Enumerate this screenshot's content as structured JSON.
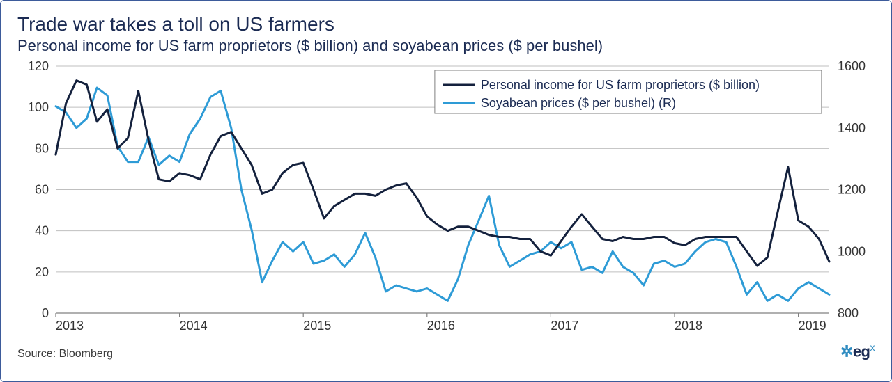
{
  "title": "Trade war takes a toll on US farmers",
  "subtitle": "Personal income for US farm proprietors ($ billion) and soyabean prices ($ per bushel)",
  "source_label": "Source: Bloomberg",
  "logo_text": "eg",
  "logo_super": "x",
  "chart": {
    "type": "line-dual-axis",
    "background_color": "#ffffff",
    "grid_color": "#bfbfbf",
    "axis_color": "#808080",
    "tick_label_color": "#333333",
    "tick_fontsize": 18,
    "title_fontsize": 28,
    "subtitle_fontsize": 22,
    "line_width": 3,
    "x": {
      "domain_start": 2013.0,
      "domain_end": 2019.25,
      "tick_values": [
        2013,
        2014,
        2015,
        2016,
        2017,
        2018,
        2019
      ],
      "tick_labels": [
        "2013",
        "2014",
        "2015",
        "2016",
        "2017",
        "2018",
        "2019"
      ]
    },
    "y_left": {
      "domain_min": 0,
      "domain_max": 120,
      "tick_step": 20,
      "tick_values": [
        0,
        20,
        40,
        60,
        80,
        100,
        120
      ],
      "label": ""
    },
    "y_right": {
      "domain_min": 800,
      "domain_max": 1600,
      "tick_step": 200,
      "tick_values": [
        800,
        1000,
        1200,
        1400,
        1600
      ],
      "label": ""
    },
    "legend": {
      "position": "top-right-inside",
      "border_color": "#808080",
      "background_color": "#ffffff",
      "fontsize": 18,
      "text_color": "#1b2b53",
      "items": [
        {
          "key": "income",
          "label": "Personal income for US farm proprietors ($ billion)"
        },
        {
          "key": "soyabean",
          "label": "Soyabean prices ($ per bushel) (R)"
        }
      ]
    },
    "series": {
      "income": {
        "color": "#14213d",
        "axis": "left",
        "data": [
          [
            2013.0,
            77
          ],
          [
            2013.083,
            102
          ],
          [
            2013.167,
            113
          ],
          [
            2013.25,
            111
          ],
          [
            2013.333,
            93
          ],
          [
            2013.417,
            99
          ],
          [
            2013.5,
            80
          ],
          [
            2013.583,
            85
          ],
          [
            2013.667,
            108
          ],
          [
            2013.75,
            84
          ],
          [
            2013.833,
            65
          ],
          [
            2013.917,
            64
          ],
          [
            2014.0,
            68
          ],
          [
            2014.083,
            67
          ],
          [
            2014.167,
            65
          ],
          [
            2014.25,
            77
          ],
          [
            2014.333,
            86
          ],
          [
            2014.417,
            88
          ],
          [
            2014.5,
            80
          ],
          [
            2014.583,
            72
          ],
          [
            2014.667,
            58
          ],
          [
            2014.75,
            60
          ],
          [
            2014.833,
            68
          ],
          [
            2014.917,
            72
          ],
          [
            2015.0,
            73
          ],
          [
            2015.083,
            60
          ],
          [
            2015.167,
            46
          ],
          [
            2015.25,
            52
          ],
          [
            2015.333,
            55
          ],
          [
            2015.417,
            58
          ],
          [
            2015.5,
            58
          ],
          [
            2015.583,
            57
          ],
          [
            2015.667,
            60
          ],
          [
            2015.75,
            62
          ],
          [
            2015.833,
            63
          ],
          [
            2015.917,
            56
          ],
          [
            2016.0,
            47
          ],
          [
            2016.083,
            43
          ],
          [
            2016.167,
            40
          ],
          [
            2016.25,
            42
          ],
          [
            2016.333,
            42
          ],
          [
            2016.417,
            40
          ],
          [
            2016.5,
            38
          ],
          [
            2016.583,
            37
          ],
          [
            2016.667,
            37
          ],
          [
            2016.75,
            36
          ],
          [
            2016.833,
            36
          ],
          [
            2016.917,
            30
          ],
          [
            2017.0,
            28
          ],
          [
            2017.083,
            35
          ],
          [
            2017.167,
            42
          ],
          [
            2017.25,
            48
          ],
          [
            2017.333,
            42
          ],
          [
            2017.417,
            36
          ],
          [
            2017.5,
            35
          ],
          [
            2017.583,
            37
          ],
          [
            2017.667,
            36
          ],
          [
            2017.75,
            36
          ],
          [
            2017.833,
            37
          ],
          [
            2017.917,
            37
          ],
          [
            2018.0,
            34
          ],
          [
            2018.083,
            33
          ],
          [
            2018.167,
            36
          ],
          [
            2018.25,
            37
          ],
          [
            2018.333,
            37
          ],
          [
            2018.417,
            37
          ],
          [
            2018.5,
            37
          ],
          [
            2018.583,
            30
          ],
          [
            2018.667,
            23
          ],
          [
            2018.75,
            27
          ],
          [
            2018.833,
            49
          ],
          [
            2018.917,
            71
          ],
          [
            2019.0,
            45
          ],
          [
            2019.083,
            42
          ],
          [
            2019.167,
            36
          ],
          [
            2019.25,
            25
          ]
        ]
      },
      "soyabean": {
        "color": "#2e9bd6",
        "axis": "right",
        "data": [
          [
            2013.0,
            1470
          ],
          [
            2013.083,
            1450
          ],
          [
            2013.167,
            1400
          ],
          [
            2013.25,
            1430
          ],
          [
            2013.333,
            1530
          ],
          [
            2013.417,
            1505
          ],
          [
            2013.5,
            1340
          ],
          [
            2013.583,
            1290
          ],
          [
            2013.667,
            1290
          ],
          [
            2013.75,
            1370
          ],
          [
            2013.833,
            1280
          ],
          [
            2013.917,
            1310
          ],
          [
            2014.0,
            1290
          ],
          [
            2014.083,
            1380
          ],
          [
            2014.167,
            1430
          ],
          [
            2014.25,
            1500
          ],
          [
            2014.333,
            1520
          ],
          [
            2014.417,
            1400
          ],
          [
            2014.5,
            1200
          ],
          [
            2014.583,
            1070
          ],
          [
            2014.667,
            900
          ],
          [
            2014.75,
            970
          ],
          [
            2014.833,
            1030
          ],
          [
            2014.917,
            1000
          ],
          [
            2015.0,
            1030
          ],
          [
            2015.083,
            960
          ],
          [
            2015.167,
            970
          ],
          [
            2015.25,
            990
          ],
          [
            2015.333,
            950
          ],
          [
            2015.417,
            990
          ],
          [
            2015.5,
            1060
          ],
          [
            2015.583,
            980
          ],
          [
            2015.667,
            870
          ],
          [
            2015.75,
            890
          ],
          [
            2015.833,
            880
          ],
          [
            2015.917,
            870
          ],
          [
            2016.0,
            880
          ],
          [
            2016.083,
            860
          ],
          [
            2016.167,
            840
          ],
          [
            2016.25,
            910
          ],
          [
            2016.333,
            1020
          ],
          [
            2016.417,
            1100
          ],
          [
            2016.5,
            1180
          ],
          [
            2016.583,
            1020
          ],
          [
            2016.667,
            950
          ],
          [
            2016.75,
            970
          ],
          [
            2016.833,
            990
          ],
          [
            2016.917,
            1000
          ],
          [
            2017.0,
            1030
          ],
          [
            2017.083,
            1010
          ],
          [
            2017.167,
            1030
          ],
          [
            2017.25,
            940
          ],
          [
            2017.333,
            950
          ],
          [
            2017.417,
            930
          ],
          [
            2017.5,
            1000
          ],
          [
            2017.583,
            950
          ],
          [
            2017.667,
            930
          ],
          [
            2017.75,
            890
          ],
          [
            2017.833,
            960
          ],
          [
            2017.917,
            970
          ],
          [
            2018.0,
            950
          ],
          [
            2018.083,
            960
          ],
          [
            2018.167,
            1000
          ],
          [
            2018.25,
            1030
          ],
          [
            2018.333,
            1040
          ],
          [
            2018.417,
            1030
          ],
          [
            2018.5,
            950
          ],
          [
            2018.583,
            860
          ],
          [
            2018.667,
            900
          ],
          [
            2018.75,
            840
          ],
          [
            2018.833,
            860
          ],
          [
            2018.917,
            840
          ],
          [
            2019.0,
            880
          ],
          [
            2019.083,
            900
          ],
          [
            2019.167,
            880
          ],
          [
            2019.25,
            860
          ]
        ]
      }
    }
  }
}
